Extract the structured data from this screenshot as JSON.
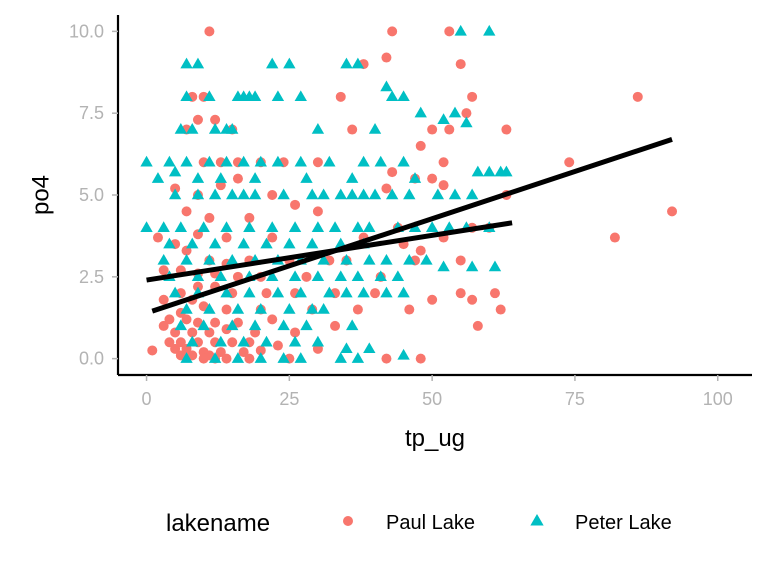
{
  "chart_data": {
    "type": "scatter",
    "title": "",
    "xlabel": "tp_ug",
    "ylabel": "po4",
    "xlim": [
      -5,
      106
    ],
    "ylim": [
      -0.5,
      10.5
    ],
    "x_ticks": [
      0,
      25,
      50,
      75,
      100
    ],
    "x_tick_labels": [
      "0",
      "25",
      "50",
      "75",
      "100"
    ],
    "y_ticks": [
      0,
      2.5,
      5,
      7.5,
      10
    ],
    "y_tick_labels": [
      "0.0",
      "2.5",
      "5.0",
      "7.5",
      "10.0"
    ],
    "grid": false,
    "legend": {
      "title": "lakename",
      "position": "bottom"
    },
    "series": [
      {
        "name": "Paul Lake",
        "color": "#F8766D",
        "marker": "circle",
        "points": [
          [
            11,
            10
          ],
          [
            43,
            10
          ],
          [
            53,
            10
          ],
          [
            42,
            9.2
          ],
          [
            55,
            9
          ],
          [
            38,
            9
          ],
          [
            86,
            8
          ],
          [
            57,
            8
          ],
          [
            8,
            8
          ],
          [
            10,
            8
          ],
          [
            34,
            8
          ],
          [
            56,
            7.5
          ],
          [
            12,
            7.3
          ],
          [
            53,
            7
          ],
          [
            50,
            7
          ],
          [
            63,
            7
          ],
          [
            36,
            7
          ],
          [
            7,
            7
          ],
          [
            9,
            7.3
          ],
          [
            15,
            7
          ],
          [
            48,
            6.5
          ],
          [
            74,
            6
          ],
          [
            30,
            6
          ],
          [
            52,
            6
          ],
          [
            20,
            6
          ],
          [
            10,
            6
          ],
          [
            13,
            6
          ],
          [
            16,
            6
          ],
          [
            24,
            6
          ],
          [
            43,
            5.7
          ],
          [
            50,
            5.5
          ],
          [
            47,
            5.5
          ],
          [
            52,
            5.3
          ],
          [
            42,
            5.2
          ],
          [
            63,
            5
          ],
          [
            5,
            5.2
          ],
          [
            9,
            5
          ],
          [
            13,
            5.3
          ],
          [
            16,
            5.5
          ],
          [
            22,
            5
          ],
          [
            26,
            4.7
          ],
          [
            30,
            4.5
          ],
          [
            7,
            4.5
          ],
          [
            11,
            4.3
          ],
          [
            18,
            4.3
          ],
          [
            44,
            4
          ],
          [
            57,
            4
          ],
          [
            60,
            4
          ],
          [
            92,
            4.5
          ],
          [
            82,
            3.7
          ],
          [
            52,
            3.7
          ],
          [
            48,
            3.3
          ],
          [
            45,
            3.5
          ],
          [
            38,
            3.7
          ],
          [
            22,
            3.7
          ],
          [
            14,
            3.7
          ],
          [
            9,
            3.8
          ],
          [
            5,
            3.5
          ],
          [
            2,
            3.7
          ],
          [
            7,
            3.3
          ],
          [
            47,
            3
          ],
          [
            55,
            3
          ],
          [
            41,
            2.5
          ],
          [
            25,
            3
          ],
          [
            32,
            3
          ],
          [
            35,
            3
          ],
          [
            18,
            3
          ],
          [
            11,
            3
          ],
          [
            14,
            2.9
          ],
          [
            3,
            2.7
          ],
          [
            6,
            2.7
          ],
          [
            9,
            2.6
          ],
          [
            12,
            2.6
          ],
          [
            16,
            2.5
          ],
          [
            20,
            2.5
          ],
          [
            28,
            2.5
          ],
          [
            55,
            2
          ],
          [
            61,
            2
          ],
          [
            57,
            1.8
          ],
          [
            50,
            1.8
          ],
          [
            40,
            2
          ],
          [
            33,
            2
          ],
          [
            26,
            2
          ],
          [
            21,
            2
          ],
          [
            15,
            2
          ],
          [
            12,
            2.2
          ],
          [
            9,
            2.2
          ],
          [
            6,
            2
          ],
          [
            3,
            1.8
          ],
          [
            8,
            1.8
          ],
          [
            62,
            1.5
          ],
          [
            46,
            1.5
          ],
          [
            37,
            1.5
          ],
          [
            29,
            1.5
          ],
          [
            20,
            1.5
          ],
          [
            14,
            1.5
          ],
          [
            10,
            1.6
          ],
          [
            6,
            1.4
          ],
          [
            4,
            1.2
          ],
          [
            7,
            1.2
          ],
          [
            9,
            1.1
          ],
          [
            12,
            1.1
          ],
          [
            16,
            1.1
          ],
          [
            22,
            1.2
          ],
          [
            33,
            1
          ],
          [
            58,
            1
          ],
          [
            3,
            1
          ],
          [
            5,
            0.8
          ],
          [
            8,
            0.8
          ],
          [
            11,
            0.8
          ],
          [
            14,
            0.9
          ],
          [
            19,
            0.8
          ],
          [
            26,
            0.8
          ],
          [
            4,
            0.5
          ],
          [
            6,
            0.5
          ],
          [
            9,
            0.5
          ],
          [
            12,
            0.5
          ],
          [
            15,
            0.5
          ],
          [
            18,
            0.5
          ],
          [
            23,
            0.4
          ],
          [
            1,
            0.25
          ],
          [
            5,
            0.3
          ],
          [
            7,
            0.3
          ],
          [
            10,
            0.2
          ],
          [
            13,
            0.2
          ],
          [
            17,
            0.2
          ],
          [
            20,
            0.25
          ],
          [
            30,
            0.3
          ],
          [
            42,
            0
          ],
          [
            48,
            0
          ],
          [
            6,
            0.1
          ],
          [
            8,
            0.1
          ],
          [
            11,
            0.1
          ],
          [
            14,
            0
          ],
          [
            10,
            0
          ],
          [
            12,
            0
          ],
          [
            18,
            0
          ],
          [
            25,
            0
          ]
        ]
      },
      {
        "name": "Peter Lake",
        "color": "#00BFC4",
        "marker": "triangle",
        "points": [
          [
            55,
            10
          ],
          [
            60,
            10
          ],
          [
            7,
            9
          ],
          [
            9,
            9
          ],
          [
            22,
            9
          ],
          [
            25,
            9
          ],
          [
            35,
            9
          ],
          [
            37,
            9
          ],
          [
            42,
            8.3
          ],
          [
            43,
            8
          ],
          [
            45,
            8
          ],
          [
            7,
            8
          ],
          [
            11,
            8
          ],
          [
            16,
            8
          ],
          [
            17,
            8
          ],
          [
            23,
            8
          ],
          [
            27,
            8
          ],
          [
            18,
            8
          ],
          [
            19,
            8
          ],
          [
            54,
            7.5
          ],
          [
            48,
            7.5
          ],
          [
            52,
            7.3
          ],
          [
            56,
            7.2
          ],
          [
            6,
            7
          ],
          [
            8,
            7
          ],
          [
            12,
            7
          ],
          [
            14,
            7
          ],
          [
            15,
            7
          ],
          [
            30,
            7
          ],
          [
            40,
            7
          ],
          [
            0,
            6
          ],
          [
            4,
            6
          ],
          [
            7,
            6
          ],
          [
            11,
            6
          ],
          [
            14,
            6
          ],
          [
            17,
            6
          ],
          [
            20,
            6
          ],
          [
            23,
            6
          ],
          [
            27,
            6
          ],
          [
            32,
            6
          ],
          [
            38,
            6
          ],
          [
            41,
            6
          ],
          [
            45,
            6
          ],
          [
            2,
            5.5
          ],
          [
            5,
            5.7
          ],
          [
            9,
            5.5
          ],
          [
            13,
            5.5
          ],
          [
            19,
            5.5
          ],
          [
            28,
            5.5
          ],
          [
            36,
            5.5
          ],
          [
            47,
            5.5
          ],
          [
            58,
            5.7
          ],
          [
            60,
            5.7
          ],
          [
            62,
            5.7
          ],
          [
            63,
            5.7
          ],
          [
            5,
            5
          ],
          [
            9,
            5
          ],
          [
            12,
            5
          ],
          [
            15,
            5
          ],
          [
            17,
            5
          ],
          [
            19,
            5
          ],
          [
            24,
            5
          ],
          [
            29,
            5
          ],
          [
            31,
            5
          ],
          [
            34,
            5
          ],
          [
            36,
            5
          ],
          [
            38,
            5
          ],
          [
            40,
            5
          ],
          [
            43,
            5
          ],
          [
            46,
            5
          ],
          [
            51,
            5
          ],
          [
            54,
            5
          ],
          [
            57,
            5
          ],
          [
            0,
            4
          ],
          [
            3,
            4
          ],
          [
            6,
            4
          ],
          [
            10,
            4
          ],
          [
            14,
            4
          ],
          [
            18,
            4
          ],
          [
            22,
            4
          ],
          [
            26,
            4
          ],
          [
            30,
            4
          ],
          [
            33,
            4
          ],
          [
            37,
            4
          ],
          [
            39,
            4
          ],
          [
            44,
            4
          ],
          [
            47,
            4
          ],
          [
            50,
            4
          ],
          [
            53,
            4
          ],
          [
            56,
            4
          ],
          [
            60,
            4
          ],
          [
            4,
            3.5
          ],
          [
            8,
            3.5
          ],
          [
            12,
            3.5
          ],
          [
            17,
            3.5
          ],
          [
            21,
            3.5
          ],
          [
            25,
            3.5
          ],
          [
            29,
            3.5
          ],
          [
            34,
            3.5
          ],
          [
            38,
            3.5
          ],
          [
            3,
            3
          ],
          [
            7,
            3
          ],
          [
            11,
            3
          ],
          [
            15,
            3
          ],
          [
            19,
            3
          ],
          [
            23,
            3
          ],
          [
            27,
            3
          ],
          [
            31,
            3
          ],
          [
            35,
            3
          ],
          [
            39,
            3
          ],
          [
            42,
            3
          ],
          [
            46,
            3
          ],
          [
            49,
            3
          ],
          [
            52,
            2.8
          ],
          [
            57,
            2.8
          ],
          [
            61,
            2.8
          ],
          [
            4,
            2.5
          ],
          [
            9,
            2.5
          ],
          [
            13,
            2.5
          ],
          [
            18,
            2.5
          ],
          [
            22,
            2.5
          ],
          [
            26,
            2.5
          ],
          [
            30,
            2.5
          ],
          [
            34,
            2.5
          ],
          [
            37,
            2.5
          ],
          [
            41,
            2.5
          ],
          [
            44,
            2.5
          ],
          [
            5,
            2
          ],
          [
            9,
            2
          ],
          [
            14,
            2
          ],
          [
            18,
            2
          ],
          [
            23,
            2
          ],
          [
            27,
            2
          ],
          [
            32,
            2
          ],
          [
            35,
            2
          ],
          [
            38,
            2
          ],
          [
            42,
            2
          ],
          [
            45,
            2
          ],
          [
            7,
            1.5
          ],
          [
            11,
            1.5
          ],
          [
            16,
            1.5
          ],
          [
            20,
            1.5
          ],
          [
            25,
            1.5
          ],
          [
            29,
            1.5
          ],
          [
            31,
            1.5
          ],
          [
            6,
            1
          ],
          [
            10,
            1
          ],
          [
            15,
            1
          ],
          [
            19,
            1
          ],
          [
            24,
            1
          ],
          [
            28,
            1
          ],
          [
            36,
            1
          ],
          [
            8,
            0.5
          ],
          [
            13,
            0.5
          ],
          [
            17,
            0.5
          ],
          [
            21,
            0.5
          ],
          [
            26,
            0.5
          ],
          [
            30,
            0.5
          ],
          [
            35,
            0.3
          ],
          [
            39,
            0.3
          ],
          [
            7,
            0
          ],
          [
            12,
            0
          ],
          [
            16,
            0
          ],
          [
            20,
            0
          ],
          [
            24,
            0
          ],
          [
            27,
            0
          ],
          [
            34,
            0
          ],
          [
            37,
            0
          ],
          [
            45,
            0.1
          ]
        ]
      }
    ],
    "trendlines": [
      {
        "name": "Paul Lake",
        "color": "#000000",
        "x": [
          0,
          64
        ],
        "y": [
          2.4,
          4.15
        ]
      },
      {
        "name": "Peter Lake",
        "color": "#000000",
        "x": [
          1,
          92
        ],
        "y": [
          1.45,
          6.7
        ]
      }
    ]
  }
}
